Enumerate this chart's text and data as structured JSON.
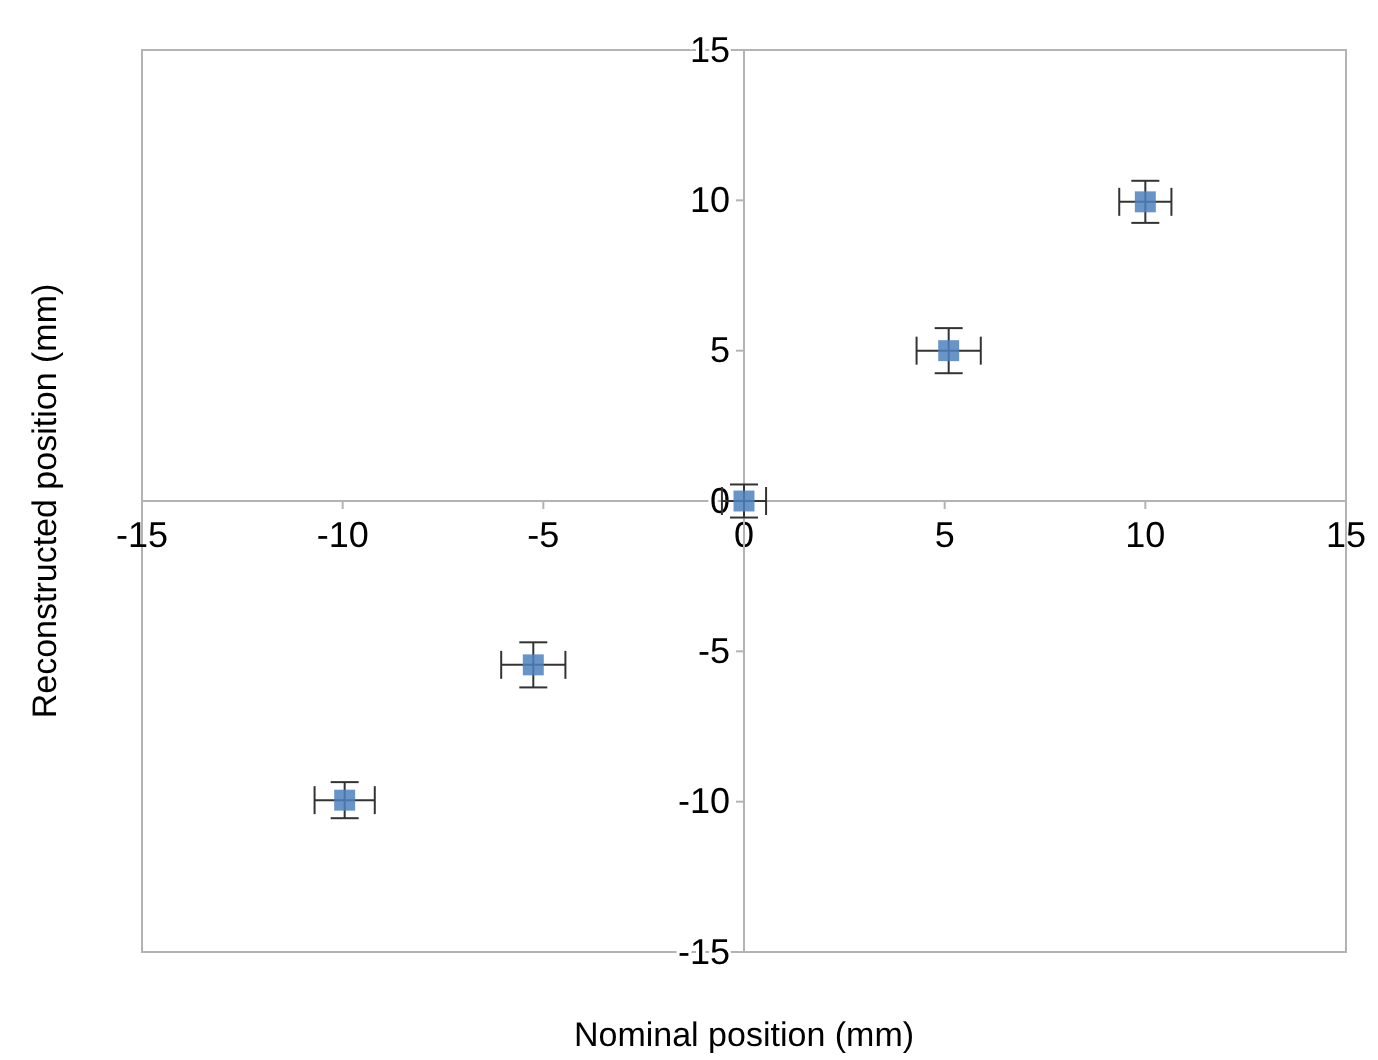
{
  "chart_data": {
    "type": "scatter",
    "xlabel": "Nominal position (mm)",
    "ylabel": "Reconstructed position (mm)",
    "x": [
      -9.95,
      -5.25,
      0,
      5.1,
      10
    ],
    "values": [
      -9.95,
      -5.45,
      0,
      5,
      9.95
    ],
    "errors": [
      0.6,
      0.75,
      0.55,
      0.75,
      0.7
    ],
    "xerrors": [
      0.75,
      0.8,
      0.55,
      0.8,
      0.65
    ],
    "color": "#4f81bd",
    "marker": "square",
    "grid": false,
    "xlim": [
      -15,
      15
    ],
    "xticks": [
      -15,
      -10,
      -5,
      0,
      5,
      10,
      15
    ],
    "ylim": [
      -15,
      15
    ],
    "yticks": [
      -15,
      -10,
      -5,
      0,
      5,
      10,
      15
    ]
  }
}
